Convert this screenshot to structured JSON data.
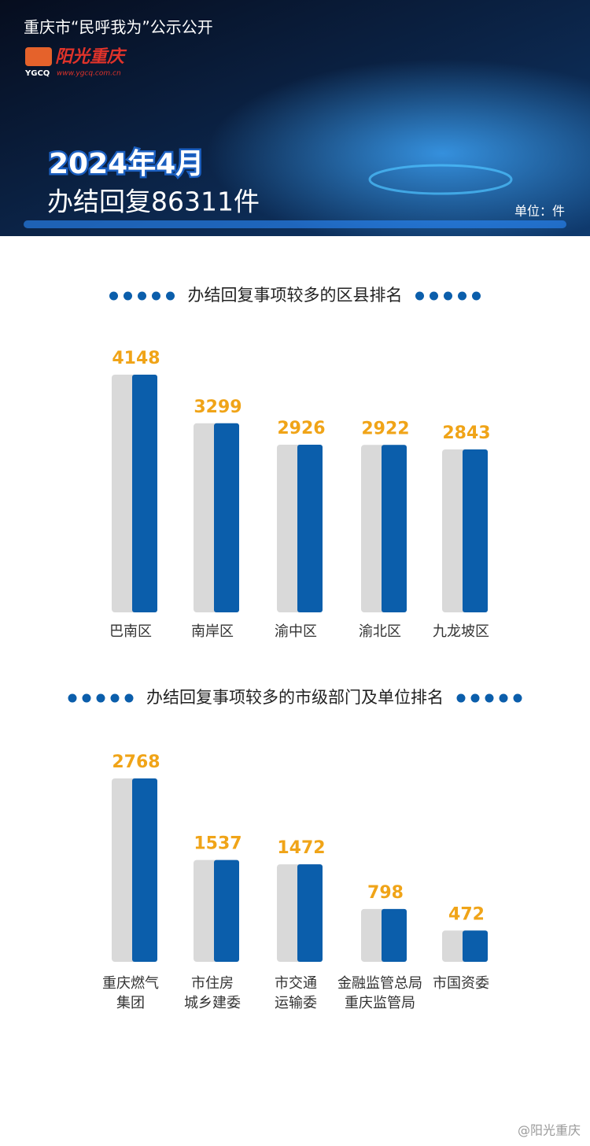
{
  "header": {
    "title": "重庆市“民呼我为”公示公开",
    "logo_text": "阳光重庆",
    "logo_abbr": "YGCQ",
    "logo_url": "www.ygcq.com.cn",
    "month": "2024年4月",
    "total": "办结回复86311件",
    "unit": "单位：件"
  },
  "chart_data": [
    {
      "type": "bar",
      "title": "办结回复事项较多的区县排名",
      "categories": [
        [
          "巴南区"
        ],
        [
          "南岸区"
        ],
        [
          "渝中区"
        ],
        [
          "渝北区"
        ],
        [
          "九龙坡区"
        ]
      ],
      "values": [
        4148,
        3299,
        2926,
        2922,
        2843
      ],
      "color": "#0b5eab",
      "shadow_color": "#d9d9d9",
      "label_color": "#f0a418"
    },
    {
      "type": "bar",
      "title": "办结回复事项较多的市级部门及单位排名",
      "categories": [
        [
          "重庆燃气",
          "集团"
        ],
        [
          "市住房",
          "城乡建委"
        ],
        [
          "市交通",
          "运输委"
        ],
        [
          "金融监管总局",
          "重庆监管局"
        ],
        [
          "市国资委"
        ]
      ],
      "values": [
        2768,
        1537,
        1472,
        798,
        472
      ],
      "color": "#0b5eab",
      "shadow_color": "#d9d9d9",
      "label_color": "#f0a418"
    }
  ],
  "watermark": "@阳光重庆"
}
